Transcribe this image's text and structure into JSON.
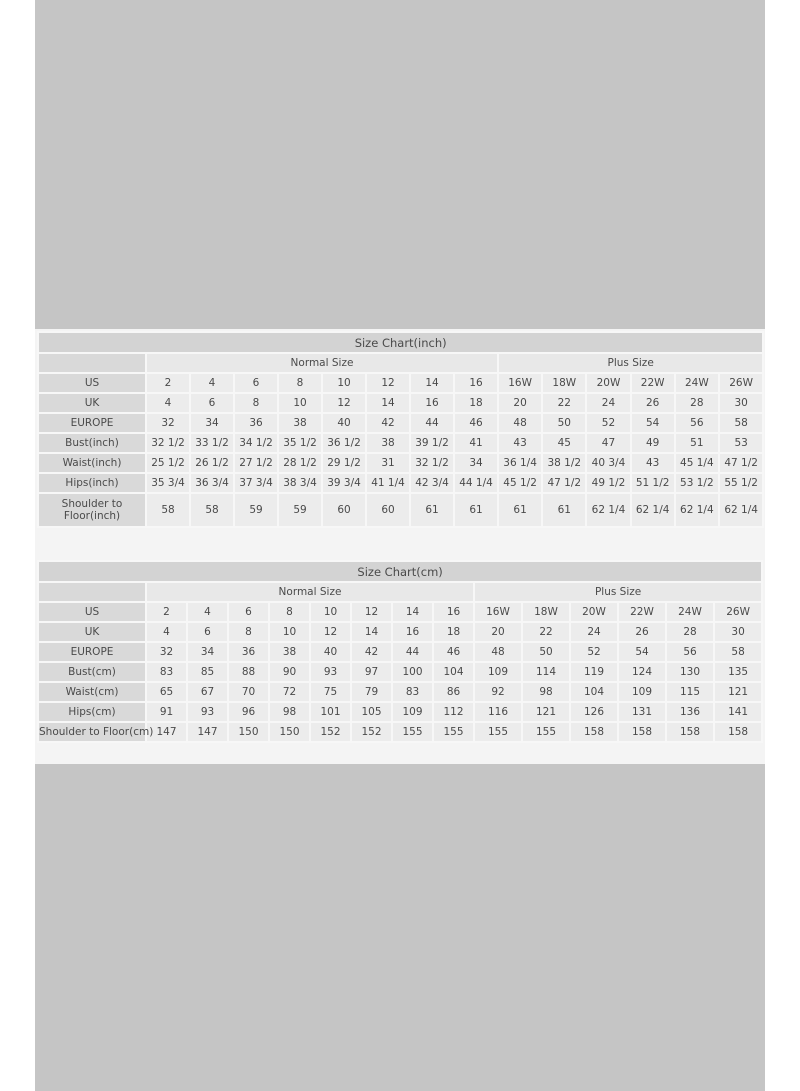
{
  "tables": [
    {
      "id": "t1",
      "title": "Size Chart(inch)",
      "groups": [
        "Normal Size",
        "Plus Size"
      ],
      "rows": [
        {
          "label": "US",
          "values": [
            "2",
            "4",
            "6",
            "8",
            "10",
            "12",
            "14",
            "16",
            "16W",
            "18W",
            "20W",
            "22W",
            "24W",
            "26W"
          ]
        },
        {
          "label": "UK",
          "values": [
            "4",
            "6",
            "8",
            "10",
            "12",
            "14",
            "16",
            "18",
            "20",
            "22",
            "24",
            "26",
            "28",
            "30"
          ]
        },
        {
          "label": "EUROPE",
          "values": [
            "32",
            "34",
            "36",
            "38",
            "40",
            "42",
            "44",
            "46",
            "48",
            "50",
            "52",
            "54",
            "56",
            "58"
          ]
        },
        {
          "label": "Bust(inch)",
          "values": [
            "32 1/2",
            "33 1/2",
            "34 1/2",
            "35 1/2",
            "36 1/2",
            "38",
            "39 1/2",
            "41",
            "43",
            "45",
            "47",
            "49",
            "51",
            "53"
          ]
        },
        {
          "label": "Waist(inch)",
          "values": [
            "25 1/2",
            "26 1/2",
            "27 1/2",
            "28 1/2",
            "29 1/2",
            "31",
            "32 1/2",
            "34",
            "36 1/4",
            "38 1/2",
            "40 3/4",
            "43",
            "45 1/4",
            "47 1/2"
          ]
        },
        {
          "label": "Hips(inch)",
          "values": [
            "35 3/4",
            "36 3/4",
            "37 3/4",
            "38 3/4",
            "39 3/4",
            "41 1/4",
            "42 3/4",
            "44 1/4",
            "45 1/2",
            "47 1/2",
            "49 1/2",
            "51 1/2",
            "53 1/2",
            "55 1/2"
          ]
        },
        {
          "label": "Shoulder to Floor(inch)",
          "values": [
            "58",
            "58",
            "59",
            "59",
            "60",
            "60",
            "61",
            "61",
            "61",
            "61",
            "62 1/4",
            "62 1/4",
            "62 1/4",
            "62 1/4"
          ]
        }
      ]
    },
    {
      "id": "t2",
      "title": "Size Chart(cm)",
      "groups": [
        "Normal Size",
        "Plus Size"
      ],
      "rows": [
        {
          "label": "US",
          "values": [
            "2",
            "4",
            "6",
            "8",
            "10",
            "12",
            "14",
            "16",
            "16W",
            "18W",
            "20W",
            "22W",
            "24W",
            "26W"
          ]
        },
        {
          "label": "UK",
          "values": [
            "4",
            "6",
            "8",
            "10",
            "12",
            "14",
            "16",
            "18",
            "20",
            "22",
            "24",
            "26",
            "28",
            "30"
          ]
        },
        {
          "label": "EUROPE",
          "values": [
            "32",
            "34",
            "36",
            "38",
            "40",
            "42",
            "44",
            "46",
            "48",
            "50",
            "52",
            "54",
            "56",
            "58"
          ]
        },
        {
          "label": "Bust(cm)",
          "values": [
            "83",
            "85",
            "88",
            "90",
            "93",
            "97",
            "100",
            "104",
            "109",
            "114",
            "119",
            "124",
            "130",
            "135"
          ]
        },
        {
          "label": "Waist(cm)",
          "values": [
            "65",
            "67",
            "70",
            "72",
            "75",
            "79",
            "83",
            "86",
            "92",
            "98",
            "104",
            "109",
            "115",
            "121"
          ]
        },
        {
          "label": "Hips(cm)",
          "values": [
            "91",
            "93",
            "96",
            "98",
            "101",
            "105",
            "109",
            "112",
            "116",
            "121",
            "126",
            "131",
            "136",
            "141"
          ]
        },
        {
          "label": "Shoulder to Floor(cm)",
          "values": [
            "147",
            "147",
            "150",
            "150",
            "152",
            "152",
            "155",
            "155",
            "155",
            "155",
            "158",
            "158",
            "158",
            "158"
          ]
        }
      ]
    }
  ]
}
